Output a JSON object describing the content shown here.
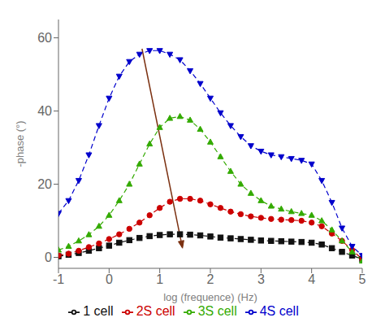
{
  "chart_data": {
    "type": "line",
    "title": "",
    "xlabel": "log (frequence) (Hz)",
    "ylabel": "-phase (°)",
    "xlim": [
      -1,
      5
    ],
    "ylim": [
      -3,
      65
    ],
    "xticks": [
      -1,
      0,
      1,
      2,
      3,
      4,
      5
    ],
    "yticks": [
      0,
      20,
      40,
      60
    ],
    "grid": false,
    "legend": "bottom",
    "x": [
      -1.0,
      -0.8,
      -0.6,
      -0.4,
      -0.2,
      0.0,
      0.2,
      0.4,
      0.6,
      0.8,
      1.0,
      1.2,
      1.4,
      1.6,
      1.8,
      2.0,
      2.2,
      2.4,
      2.6,
      2.8,
      3.0,
      3.2,
      3.4,
      3.6,
      3.8,
      4.0,
      4.2,
      4.4,
      4.6,
      4.8,
      5.0
    ],
    "series": [
      {
        "name": "1 cell",
        "color": "#111111",
        "marker": "square",
        "line_style": "dashed",
        "values": [
          0.3,
          0.7,
          1.2,
          1.8,
          2.5,
          3.2,
          4.0,
          4.7,
          5.3,
          5.8,
          6.1,
          6.3,
          6.3,
          6.2,
          6.0,
          5.7,
          5.4,
          5.2,
          5.0,
          4.8,
          4.6,
          4.5,
          4.4,
          4.3,
          4.2,
          4.0,
          3.5,
          2.5,
          1.5,
          0.5,
          -0.5
        ]
      },
      {
        "name": "2S cell",
        "color": "#cc0000",
        "marker": "circle",
        "line_style": "dashed",
        "values": [
          0.5,
          1.0,
          1.8,
          2.8,
          3.8,
          5.0,
          6.3,
          7.8,
          9.5,
          11.5,
          13.5,
          15.2,
          16.0,
          16.0,
          15.5,
          14.5,
          13.5,
          12.5,
          11.8,
          11.2,
          10.8,
          10.5,
          10.3,
          10.2,
          10.0,
          9.5,
          8.5,
          6.5,
          4.5,
          2.0,
          -0.5
        ]
      },
      {
        "name": "3S cell",
        "color": "#33aa00",
        "marker": "triangle-up",
        "line_style": "dashed",
        "values": [
          2.0,
          3.0,
          4.5,
          6.2,
          8.5,
          11.5,
          15.5,
          20.0,
          25.5,
          31.0,
          35.5,
          38.0,
          38.5,
          37.5,
          35.0,
          31.5,
          27.5,
          23.5,
          20.0,
          17.5,
          15.5,
          14.0,
          13.2,
          12.5,
          12.0,
          11.5,
          10.0,
          7.5,
          4.5,
          1.5,
          -1.0
        ]
      },
      {
        "name": "4S cell",
        "color": "#0000cc",
        "marker": "triangle-down",
        "line_style": "dashed",
        "values": [
          12.0,
          15.5,
          21.0,
          28.0,
          36.0,
          43.5,
          49.5,
          53.5,
          55.5,
          56.5,
          56.5,
          55.5,
          54.0,
          51.0,
          47.5,
          43.5,
          39.5,
          36.0,
          33.0,
          30.5,
          29.0,
          28.0,
          27.5,
          27.0,
          26.5,
          25.5,
          21.0,
          15.0,
          8.0,
          3.0,
          0.5
        ]
      }
    ],
    "annotations": [
      {
        "type": "arrow",
        "x_start": 0.65,
        "y_start": 57,
        "x_end": 1.45,
        "y_end": 2.5,
        "color": "#7B3010"
      }
    ]
  }
}
